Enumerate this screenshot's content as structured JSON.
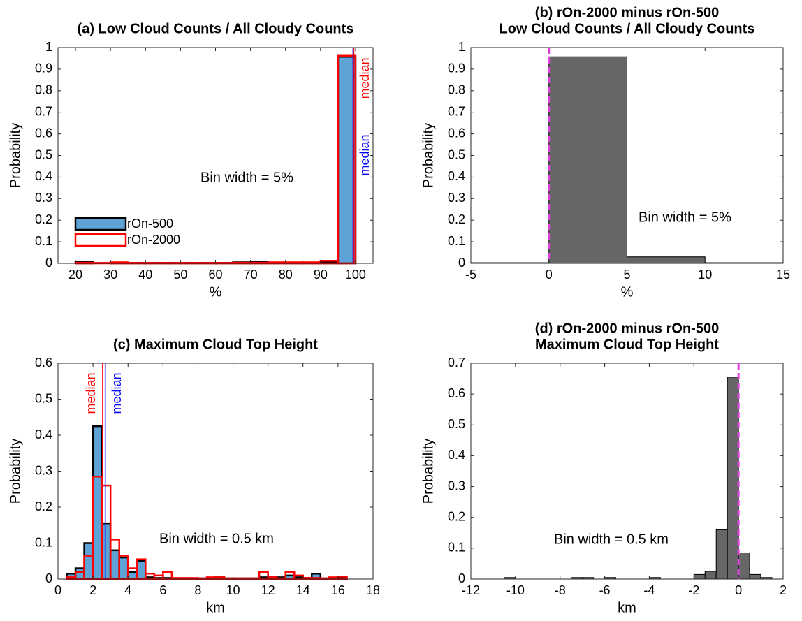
{
  "chart_data": [
    {
      "type": "histogram",
      "title": [
        "(a) Low Cloud Counts / All Cloudy Counts"
      ],
      "xlabel": "%",
      "ylabel": "Probability",
      "bins": [
        20,
        25,
        30,
        35,
        40,
        45,
        50,
        55,
        60,
        65,
        70,
        75,
        80,
        85,
        90,
        95,
        100
      ],
      "series": [
        {
          "name": "rOn-500",
          "color": "#5ea3d6",
          "edgecolor": "#000000",
          "filled": true,
          "values": [
            0.007,
            0,
            0.002,
            0.002,
            0.002,
            0.002,
            0.002,
            0.002,
            0.002,
            0.005,
            0.006,
            0.004,
            0.003,
            0.004,
            0.008,
            0.957
          ]
        },
        {
          "name": "rOn-2000",
          "color": "#ff0000",
          "edgecolor": "#ff0000",
          "filled": false,
          "values": [
            0.003,
            0.002,
            0.005,
            0.002,
            0.002,
            0.002,
            0.002,
            0.002,
            0.002,
            0.003,
            0.003,
            0.005,
            0.005,
            0.005,
            0.012,
            0.962
          ]
        }
      ],
      "xlim": [
        15,
        105
      ],
      "xticks": [
        20,
        30,
        40,
        50,
        60,
        70,
        80,
        90,
        100
      ],
      "ylim": [
        0,
        1
      ],
      "yticks": [
        0,
        0.1,
        0.2,
        0.3,
        0.4,
        0.5,
        0.6,
        0.7,
        0.8,
        0.9,
        1
      ],
      "medians": [
        {
          "value": 99.5,
          "color": "#ff0000",
          "label": "median"
        },
        {
          "value": 99.3,
          "color": "#0000ff",
          "label": "median"
        }
      ],
      "annotation": "Bin width = 5%",
      "legend": "lower left"
    },
    {
      "type": "histogram",
      "title": [
        "(b) rOn-2000 minus rOn-500",
        "Low Cloud Counts / All Cloudy Counts"
      ],
      "xlabel": "%",
      "ylabel": "Probability",
      "bins": [
        -5,
        0,
        5,
        10,
        15
      ],
      "series": [
        {
          "color": "#666666",
          "edgecolor": "#000000",
          "filled": true,
          "values": [
            0.003,
            0.957,
            0.03,
            0.003
          ]
        }
      ],
      "xlim": [
        -5,
        15
      ],
      "xticks": [
        -5,
        0,
        5,
        10,
        15
      ],
      "ylim": [
        0,
        1
      ],
      "yticks": [
        0,
        0.1,
        0.2,
        0.3,
        0.4,
        0.5,
        0.6,
        0.7,
        0.8,
        0.9,
        1
      ],
      "vlines": [
        {
          "value": 0,
          "color": "#e040e0",
          "dashed": true
        }
      ],
      "annotation": "Bin width = 5%"
    },
    {
      "type": "histogram",
      "title": [
        "(c) Maximum Cloud Top Height"
      ],
      "xlabel": "km",
      "ylabel": "Probability",
      "bins": [
        0.5,
        1,
        1.5,
        2,
        2.5,
        3,
        3.5,
        4,
        4.5,
        5,
        5.5,
        6,
        6.5,
        7,
        7.5,
        8,
        8.5,
        9,
        9.5,
        10,
        10.5,
        11,
        11.5,
        12,
        12.5,
        13,
        13.5,
        14,
        14.5,
        15,
        15.5,
        16,
        16.5
      ],
      "series": [
        {
          "name": "rOn-500",
          "color": "#5ea3d6",
          "edgecolor": "#000000",
          "filled": true,
          "values": [
            0.015,
            0.03,
            0.1,
            0.425,
            0.155,
            0.08,
            0.06,
            0.02,
            0.05,
            0.005,
            0.003,
            0.003,
            0.002,
            0.002,
            0.002,
            0.002,
            0.002,
            0.005,
            0.002,
            0.002,
            0.002,
            0.002,
            0.005,
            0.005,
            0.005,
            0.01,
            0.005,
            0.003,
            0.015,
            0.002,
            0.002,
            0.005
          ]
        },
        {
          "name": "rOn-2000",
          "color": "#ff0000",
          "edgecolor": "#ff0000",
          "filled": false,
          "values": [
            0.005,
            0.02,
            0.065,
            0.285,
            0.26,
            0.11,
            0.065,
            0.03,
            0.055,
            0.015,
            0.01,
            0.02,
            0.003,
            0.003,
            0.003,
            0.002,
            0.005,
            0.005,
            0.002,
            0.002,
            0.002,
            0.002,
            0.02,
            0.005,
            0.002,
            0.02,
            0.01,
            0.003,
            0.003,
            0.002,
            0.005,
            0.007
          ]
        }
      ],
      "xlim": [
        0,
        18
      ],
      "xticks": [
        0,
        2,
        4,
        6,
        8,
        10,
        12,
        14,
        16,
        18
      ],
      "ylim": [
        0,
        0.6
      ],
      "yticks": [
        0,
        0.1,
        0.2,
        0.3,
        0.4,
        0.5,
        0.6
      ],
      "medians": [
        {
          "value": 2.55,
          "color": "#ff0000",
          "label": "median"
        },
        {
          "value": 2.7,
          "color": "#0000ff",
          "label": "median"
        }
      ],
      "annotation": "Bin width = 0.5 km"
    },
    {
      "type": "histogram",
      "title": [
        "(d) rOn-2000 minus rOn-500",
        "Maximum Cloud Top Height"
      ],
      "xlabel": "km",
      "ylabel": "Probability",
      "bins": [
        -10.5,
        -10,
        -9.5,
        -9,
        -8.5,
        -8,
        -7.5,
        -7,
        -6.5,
        -6,
        -5.5,
        -5,
        -4.5,
        -4,
        -3.5,
        -3,
        -2.5,
        -2,
        -1.5,
        -1,
        -0.5,
        0,
        0.5,
        1,
        1.5
      ],
      "series": [
        {
          "color": "#666666",
          "edgecolor": "#000000",
          "filled": true,
          "values": [
            0.005,
            0,
            0,
            0,
            0,
            0,
            0.005,
            0.005,
            0,
            0.005,
            0,
            0,
            0,
            0.005,
            0,
            0,
            0,
            0.015,
            0.025,
            0.16,
            0.655,
            0.085,
            0.015,
            0.005
          ]
        }
      ],
      "xlim": [
        -12,
        2
      ],
      "xticks": [
        -12,
        -10,
        -8,
        -6,
        -4,
        -2,
        0,
        2
      ],
      "ylim": [
        0,
        0.7
      ],
      "yticks": [
        0,
        0.1,
        0.2,
        0.3,
        0.4,
        0.5,
        0.6,
        0.7
      ],
      "vlines": [
        {
          "value": 0,
          "color": "#e040e0",
          "dashed": true
        }
      ],
      "annotation": "Bin width = 0.5 km"
    }
  ]
}
